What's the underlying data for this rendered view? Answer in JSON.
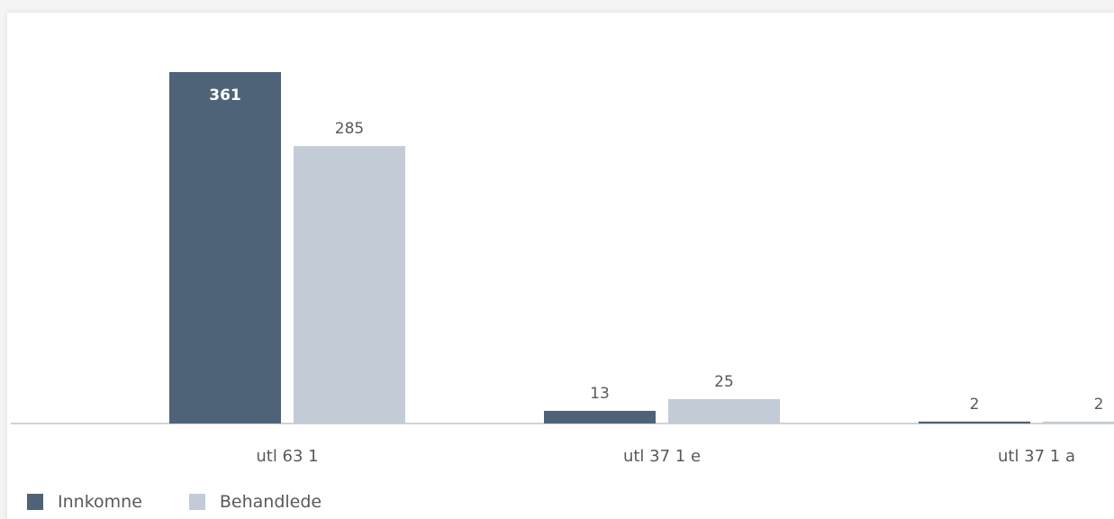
{
  "chart_data": {
    "type": "bar",
    "categories": [
      "utl 63 1",
      "utl 37 1 e",
      "utl 37 1 a"
    ],
    "series": [
      {
        "name": "Innkomne",
        "values": [
          361,
          13,
          2
        ],
        "color": "#4f6378"
      },
      {
        "name": "Behandlede",
        "values": [
          285,
          25,
          2
        ],
        "color": "#c3ccd6"
      }
    ],
    "ylim": [
      0,
      361
    ],
    "grid": false,
    "legend_position": "bottom-left",
    "value_labels": true
  }
}
